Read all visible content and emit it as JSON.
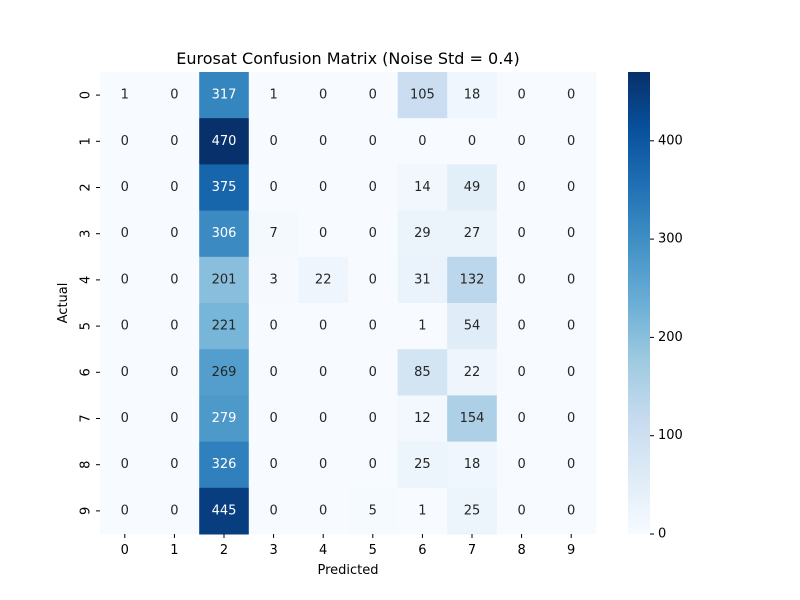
{
  "chart_data": {
    "type": "heatmap",
    "title": "Eurosat Confusion Matrix (Noise Std = 0.4)",
    "xlabel": "Predicted",
    "ylabel": "Actual",
    "x_categories": [
      "0",
      "1",
      "2",
      "3",
      "4",
      "5",
      "6",
      "7",
      "8",
      "9"
    ],
    "y_categories": [
      "0",
      "1",
      "2",
      "3",
      "4",
      "5",
      "6",
      "7",
      "8",
      "9"
    ],
    "values": [
      [
        1,
        0,
        317,
        1,
        0,
        0,
        105,
        18,
        0,
        0
      ],
      [
        0,
        0,
        470,
        0,
        0,
        0,
        0,
        0,
        0,
        0
      ],
      [
        0,
        0,
        375,
        0,
        0,
        0,
        14,
        49,
        0,
        0
      ],
      [
        0,
        0,
        306,
        7,
        0,
        0,
        29,
        27,
        0,
        0
      ],
      [
        0,
        0,
        201,
        3,
        22,
        0,
        31,
        132,
        0,
        0
      ],
      [
        0,
        0,
        221,
        0,
        0,
        0,
        1,
        54,
        0,
        0
      ],
      [
        0,
        0,
        269,
        0,
        0,
        0,
        85,
        22,
        0,
        0
      ],
      [
        0,
        0,
        279,
        0,
        0,
        0,
        12,
        154,
        0,
        0
      ],
      [
        0,
        0,
        326,
        0,
        0,
        0,
        25,
        18,
        0,
        0
      ],
      [
        0,
        0,
        445,
        0,
        0,
        5,
        1,
        25,
        0,
        0
      ]
    ],
    "colormap": "Blues",
    "colormap_stops": [
      "#f7fbff",
      "#deebf7",
      "#c6dbef",
      "#9ecae1",
      "#6baed6",
      "#4292c6",
      "#2171b5",
      "#08519c",
      "#08306b"
    ],
    "vmin": 0,
    "vmax": 470,
    "colorbar_ticks": [
      0,
      100,
      200,
      300,
      400
    ],
    "annotated": true,
    "grid": false
  }
}
